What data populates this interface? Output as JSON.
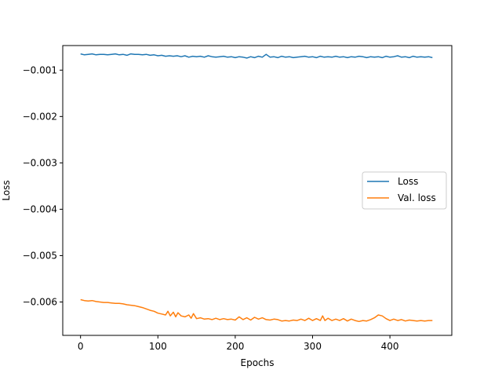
{
  "chart_data": {
    "type": "line",
    "title": "",
    "xlabel": "Epochs",
    "ylabel": "Loss",
    "xlim": [
      -23,
      480
    ],
    "ylim": [
      -0.00672,
      -0.00047
    ],
    "xticks": [
      0,
      100,
      200,
      300,
      400
    ],
    "xtick_labels": [
      "0",
      "100",
      "200",
      "300",
      "400"
    ],
    "yticks": [
      -0.006,
      -0.005,
      -0.004,
      -0.003,
      -0.002,
      -0.001
    ],
    "ytick_labels": [
      "−0.006",
      "−0.005",
      "−0.004",
      "−0.003",
      "−0.002",
      "−0.001"
    ],
    "grid": false,
    "legend_position": "center-right",
    "series": [
      {
        "name": "Loss",
        "color": "#1f77b4",
        "x": [
          0,
          5,
          10,
          15,
          20,
          25,
          30,
          35,
          40,
          45,
          50,
          55,
          60,
          65,
          70,
          75,
          80,
          85,
          90,
          95,
          100,
          105,
          110,
          115,
          120,
          125,
          130,
          135,
          140,
          145,
          150,
          155,
          160,
          165,
          170,
          175,
          180,
          185,
          190,
          195,
          200,
          205,
          210,
          215,
          220,
          225,
          230,
          235,
          240,
          245,
          250,
          255,
          260,
          265,
          270,
          275,
          280,
          285,
          290,
          295,
          300,
          305,
          310,
          315,
          320,
          325,
          330,
          335,
          340,
          345,
          350,
          355,
          360,
          365,
          370,
          375,
          380,
          385,
          390,
          395,
          400,
          405,
          410,
          415,
          420,
          425,
          430,
          435,
          440,
          445,
          450,
          455
        ],
        "y": [
          -0.00065,
          -0.00067,
          -0.00066,
          -0.00065,
          -0.00067,
          -0.00066,
          -0.00066,
          -0.00067,
          -0.00066,
          -0.00065,
          -0.00067,
          -0.00066,
          -0.00068,
          -0.00065,
          -0.00066,
          -0.00066,
          -0.00067,
          -0.00066,
          -0.00068,
          -0.00067,
          -0.00069,
          -0.00068,
          -0.0007,
          -0.00069,
          -0.0007,
          -0.00069,
          -0.00071,
          -0.00069,
          -0.00072,
          -0.0007,
          -0.00071,
          -0.0007,
          -0.00072,
          -0.00069,
          -0.00071,
          -0.00072,
          -0.00071,
          -0.0007,
          -0.00072,
          -0.00071,
          -0.00073,
          -0.00071,
          -0.00072,
          -0.00074,
          -0.00071,
          -0.00073,
          -0.0007,
          -0.00072,
          -0.00066,
          -0.00072,
          -0.00071,
          -0.00073,
          -0.0007,
          -0.00072,
          -0.00071,
          -0.00073,
          -0.00072,
          -0.00071,
          -0.0007,
          -0.00072,
          -0.00071,
          -0.00073,
          -0.0007,
          -0.00072,
          -0.00071,
          -0.00072,
          -0.0007,
          -0.00072,
          -0.00071,
          -0.00073,
          -0.00071,
          -0.00072,
          -0.0007,
          -0.00071,
          -0.00073,
          -0.00071,
          -0.00072,
          -0.00071,
          -0.00073,
          -0.0007,
          -0.00072,
          -0.00071,
          -0.00069,
          -0.00072,
          -0.00071,
          -0.00073,
          -0.0007,
          -0.00072,
          -0.00071,
          -0.00072,
          -0.00071,
          -0.00073
        ]
      },
      {
        "name": "Val. loss",
        "color": "#ff7f0e",
        "x": [
          0,
          5,
          10,
          15,
          20,
          25,
          30,
          35,
          40,
          45,
          50,
          55,
          60,
          65,
          70,
          75,
          80,
          85,
          90,
          95,
          100,
          105,
          110,
          113,
          116,
          120,
          123,
          126,
          130,
          135,
          140,
          143,
          146,
          150,
          155,
          160,
          165,
          170,
          175,
          180,
          185,
          190,
          195,
          200,
          205,
          210,
          215,
          220,
          225,
          230,
          235,
          240,
          245,
          250,
          255,
          260,
          265,
          270,
          275,
          280,
          285,
          290,
          295,
          300,
          305,
          310,
          313,
          316,
          320,
          325,
          330,
          335,
          340,
          345,
          350,
          355,
          360,
          365,
          370,
          375,
          380,
          385,
          390,
          395,
          400,
          405,
          410,
          415,
          420,
          425,
          430,
          435,
          440,
          445,
          450,
          455
        ],
        "y": [
          -0.00595,
          -0.00597,
          -0.00598,
          -0.00597,
          -0.00599,
          -0.006,
          -0.00601,
          -0.00601,
          -0.00602,
          -0.00603,
          -0.00603,
          -0.00604,
          -0.00606,
          -0.00607,
          -0.00608,
          -0.0061,
          -0.00612,
          -0.00615,
          -0.00618,
          -0.0062,
          -0.00624,
          -0.00626,
          -0.00628,
          -0.0062,
          -0.0063,
          -0.00622,
          -0.00632,
          -0.00623,
          -0.0063,
          -0.00632,
          -0.00628,
          -0.00635,
          -0.00625,
          -0.00636,
          -0.00634,
          -0.00637,
          -0.00636,
          -0.00638,
          -0.00635,
          -0.00638,
          -0.00636,
          -0.00638,
          -0.00637,
          -0.00639,
          -0.00632,
          -0.00638,
          -0.00634,
          -0.00639,
          -0.00633,
          -0.00637,
          -0.00634,
          -0.00638,
          -0.00639,
          -0.00637,
          -0.00638,
          -0.00641,
          -0.0064,
          -0.00641,
          -0.00639,
          -0.0064,
          -0.00637,
          -0.0064,
          -0.00635,
          -0.0064,
          -0.00636,
          -0.0064,
          -0.0063,
          -0.0064,
          -0.00635,
          -0.0064,
          -0.00637,
          -0.0064,
          -0.00636,
          -0.00641,
          -0.00637,
          -0.0064,
          -0.00642,
          -0.0064,
          -0.00641,
          -0.00638,
          -0.00634,
          -0.00628,
          -0.0063,
          -0.00636,
          -0.0064,
          -0.00637,
          -0.0064,
          -0.00638,
          -0.00641,
          -0.00639,
          -0.0064,
          -0.00641,
          -0.0064,
          -0.00641,
          -0.0064,
          -0.0064
        ]
      }
    ]
  }
}
